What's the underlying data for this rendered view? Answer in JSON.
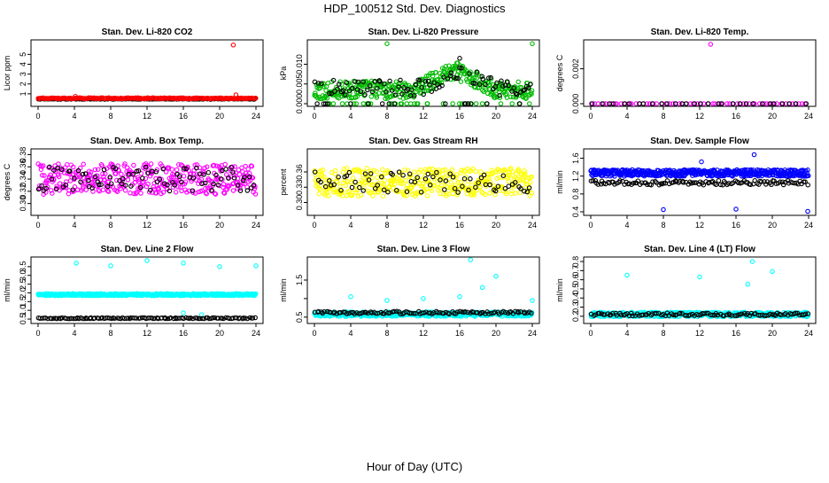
{
  "figure": {
    "title": "HDP_100512  Std. Dev. Diagnostics",
    "xlabel": "Hour of Day (UTC)"
  },
  "chart_data": [
    {
      "type": "scatter",
      "title": "Stan. Dev. Li-820 CO2",
      "ylabel": "Licor ppm",
      "xlim": [
        0,
        24
      ],
      "ylim": [
        0,
        6.2
      ],
      "xticks": [
        0,
        4,
        8,
        12,
        16,
        20,
        24
      ],
      "yticks": [
        1,
        2,
        3,
        4,
        5
      ],
      "ytick_labels": [
        "1",
        "2",
        "3",
        "4",
        "5"
      ],
      "series": [
        {
          "name": "black",
          "color": "#000000",
          "generator": "band",
          "count": 130,
          "x0": 0,
          "x1": 24,
          "center": 0.48,
          "spread": 0.06,
          "seed": 11,
          "points": [
            [
              0.2,
              0.52
            ],
            [
              23.9,
              0.55
            ]
          ]
        },
        {
          "name": "red",
          "color": "#ff0000",
          "generator": "band",
          "count": 220,
          "x0": 0,
          "x1": 24,
          "center": 0.55,
          "spread": 0.1,
          "seed": 12,
          "points": [
            [
              21.5,
              5.95
            ],
            [
              21.8,
              0.9
            ],
            [
              4.1,
              0.75
            ]
          ]
        }
      ]
    },
    {
      "type": "scatter",
      "title": "Stan. Dev. Li-820 Pressure",
      "ylabel": "kPa",
      "xlim": [
        0,
        24
      ],
      "ylim": [
        0,
        0.0155
      ],
      "xticks": [
        0,
        4,
        8,
        12,
        16,
        20,
        24
      ],
      "yticks": [
        0.0,
        0.005,
        0.01
      ],
      "ytick_labels": [
        "0.000",
        "0.005",
        "0.010"
      ],
      "series": [
        {
          "name": "green",
          "color": "#00bb00",
          "generator": "hump",
          "count": 420,
          "x0": 0,
          "x1": 24,
          "base": 0.0035,
          "peak": 0.0085,
          "peak_at": 15.5,
          "width": 4.5,
          "spread": 0.0045,
          "seed": 21,
          "points": [
            [
              8.0,
              0.0152
            ],
            [
              24.0,
              0.0152
            ]
          ]
        },
        {
          "name": "black",
          "color": "#000000",
          "generator": "hump",
          "count": 110,
          "x0": 0,
          "x1": 24,
          "base": 0.004,
          "peak": 0.0085,
          "peak_at": 16.0,
          "width": 4.0,
          "spread": 0.004,
          "seed": 22,
          "points": [
            [
              16.0,
              0.0115
            ]
          ]
        }
      ]
    },
    {
      "type": "scatter",
      "title": "Stan. Dev. Li-820 Temp.",
      "ylabel": "degrees C",
      "xlim": [
        0,
        24
      ],
      "ylim": [
        0,
        0.0035
      ],
      "xticks": [
        0,
        4,
        8,
        12,
        16,
        20,
        24
      ],
      "yticks": [
        0.0,
        0.002
      ],
      "ytick_labels": [
        "0.000",
        "0.002"
      ],
      "series": [
        {
          "name": "magenta",
          "color": "#ff00ff",
          "generator": "band",
          "count": 60,
          "x0": 0,
          "x1": 24,
          "center": 0.0,
          "spread": 0.0,
          "seed": 31,
          "points": [
            [
              13.2,
              0.0034
            ]
          ]
        },
        {
          "name": "black",
          "color": "#000000",
          "generator": "band",
          "count": 30,
          "x0": 0,
          "x1": 24,
          "center": 0.0,
          "spread": 0.0,
          "seed": 32,
          "points": []
        }
      ]
    },
    {
      "type": "scatter",
      "title": "Stan. Dev. Amb. Box Temp.",
      "ylabel": "degrees C",
      "xlim": [
        0,
        24
      ],
      "ylim": [
        0.285,
        0.385
      ],
      "xticks": [
        0,
        4,
        8,
        12,
        16,
        20,
        24
      ],
      "yticks": [
        0.3,
        0.32,
        0.34,
        0.36,
        0.38
      ],
      "ytick_labels": [
        "0.30",
        "0.32",
        "0.34",
        "0.36",
        "0.38"
      ],
      "series": [
        {
          "name": "magenta",
          "color": "#ff00ff",
          "generator": "band",
          "count": 380,
          "x0": 0,
          "x1": 24,
          "center": 0.34,
          "spread": 0.05,
          "seed": 41,
          "points": []
        },
        {
          "name": "black",
          "color": "#000000",
          "generator": "band",
          "count": 90,
          "x0": 0,
          "x1": 24,
          "center": 0.34,
          "spread": 0.04,
          "seed": 42,
          "points": []
        }
      ]
    },
    {
      "type": "scatter",
      "title": "Stan. Dev. Gas Stream RH",
      "ylabel": "percent",
      "xlim": [
        0,
        24
      ],
      "ylim": [
        0.28,
        0.4
      ],
      "xticks": [
        0,
        4,
        8,
        12,
        16,
        20,
        24
      ],
      "yticks": [
        0.3,
        0.33,
        0.36
      ],
      "ytick_labels": [
        "0.30",
        "0.33",
        "0.36"
      ],
      "series": [
        {
          "name": "yellow",
          "color": "#ffff00",
          "generator": "band",
          "count": 400,
          "x0": 0,
          "x1": 24,
          "center": 0.34,
          "spread": 0.055,
          "seed": 51,
          "points": []
        },
        {
          "name": "black",
          "color": "#000000",
          "generator": "band",
          "count": 70,
          "x0": 0,
          "x1": 24,
          "center": 0.34,
          "spread": 0.04,
          "seed": 52,
          "points": []
        }
      ]
    },
    {
      "type": "scatter",
      "title": "Stan. Dev. Sample Flow",
      "ylabel": "ml/min",
      "xlim": [
        0,
        24
      ],
      "ylim": [
        0.38,
        1.75
      ],
      "xticks": [
        0,
        4,
        8,
        12,
        16,
        20,
        24
      ],
      "yticks": [
        0.4,
        0.8,
        1.2,
        1.6
      ],
      "ytick_labels": [
        "0.4",
        "0.8",
        "1.2",
        "1.6"
      ],
      "series": [
        {
          "name": "blue",
          "color": "#0000ff",
          "generator": "band",
          "count": 480,
          "x0": 0,
          "x1": 24,
          "center": 1.27,
          "spread": 0.15,
          "seed": 61,
          "points": [
            [
              8.0,
              0.45
            ],
            [
              16.0,
              0.46
            ],
            [
              23.9,
              0.41
            ],
            [
              12.2,
              1.52
            ],
            [
              18.0,
              1.68
            ]
          ]
        },
        {
          "name": "black",
          "color": "#000000",
          "generator": "band",
          "count": 120,
          "x0": 0,
          "x1": 24,
          "center": 1.05,
          "spread": 0.1,
          "seed": 62,
          "points": []
        }
      ]
    },
    {
      "type": "scatter",
      "title": "Stan. Dev. Line 2 Flow",
      "ylabel": "ml/min",
      "xlim": [
        0,
        24
      ],
      "ylim": [
        0.4,
        3.9
      ],
      "xticks": [
        0,
        4,
        8,
        12,
        16,
        20,
        24
      ],
      "yticks": [
        0.5,
        1.0,
        1.5,
        2.0,
        2.5,
        3.0,
        3.5
      ],
      "ytick_labels": [
        "0.5",
        "1.0",
        "1.5",
        "2.0",
        "2.5",
        "3.0",
        "3.5"
      ],
      "series": [
        {
          "name": "cyan",
          "color": "#00ffff",
          "generator": "band",
          "count": 420,
          "x0": 0,
          "x1": 24,
          "center": 1.9,
          "spread": 0.12,
          "seed": 71,
          "points": [
            [
              4.2,
              3.7
            ],
            [
              8.0,
              3.55
            ],
            [
              12.0,
              3.85
            ],
            [
              16.0,
              3.7
            ],
            [
              20.0,
              3.5
            ],
            [
              24.0,
              3.55
            ],
            [
              16.0,
              0.85
            ],
            [
              18.0,
              0.75
            ]
          ]
        },
        {
          "name": "black",
          "color": "#000000",
          "generator": "band",
          "count": 120,
          "x0": 0,
          "x1": 24,
          "center": 0.55,
          "spread": 0.06,
          "seed": 72,
          "points": []
        }
      ]
    },
    {
      "type": "scatter",
      "title": "Stan. Dev. Line 3 Flow",
      "ylabel": "ml/min",
      "xlim": [
        0,
        24
      ],
      "ylim": [
        0.4,
        2.05
      ],
      "xticks": [
        0,
        4,
        8,
        12,
        16,
        20,
        24
      ],
      "yticks": [
        0.5,
        1.0,
        1.5
      ],
      "ytick_labels": [
        "0.5",
        "",
        "1.5"
      ],
      "series": [
        {
          "name": "cyan",
          "color": "#00ffff",
          "generator": "band",
          "count": 440,
          "x0": 0,
          "x1": 24,
          "center": 0.58,
          "spread": 0.12,
          "seed": 81,
          "points": [
            [
              4.0,
              1.05
            ],
            [
              8.0,
              0.95
            ],
            [
              12.0,
              1.0
            ],
            [
              16.0,
              1.05
            ],
            [
              17.2,
              2.05
            ],
            [
              18.5,
              1.3
            ],
            [
              20.0,
              1.6
            ],
            [
              24.0,
              0.95
            ]
          ]
        },
        {
          "name": "black",
          "color": "#000000",
          "generator": "band",
          "count": 110,
          "x0": 0,
          "x1": 24,
          "center": 0.62,
          "spread": 0.07,
          "seed": 82,
          "points": []
        }
      ]
    },
    {
      "type": "scatter",
      "title": "Stan. Dev. Line 4 (LT) Flow",
      "ylabel": "ml/min",
      "xlim": [
        0,
        24
      ],
      "ylim": [
        0.15,
        0.82
      ],
      "xticks": [
        0,
        4,
        8,
        12,
        16,
        20,
        24
      ],
      "yticks": [
        0.2,
        0.3,
        0.4,
        0.5,
        0.6,
        0.7,
        0.8
      ],
      "ytick_labels": [
        "0.2",
        "0.3",
        "0.4",
        "0.5",
        "0.6",
        "0.7",
        "0.8"
      ],
      "series": [
        {
          "name": "cyan",
          "color": "#00ffff",
          "generator": "band",
          "count": 440,
          "x0": 0,
          "x1": 24,
          "center": 0.22,
          "spread": 0.05,
          "seed": 91,
          "points": [
            [
              4.0,
              0.65
            ],
            [
              12.0,
              0.63
            ],
            [
              17.3,
              0.55
            ],
            [
              17.8,
              0.8
            ],
            [
              20.0,
              0.69
            ]
          ]
        },
        {
          "name": "black",
          "color": "#000000",
          "generator": "band",
          "count": 110,
          "x0": 0,
          "x1": 24,
          "center": 0.22,
          "spread": 0.03,
          "seed": 92,
          "points": []
        }
      ]
    }
  ]
}
